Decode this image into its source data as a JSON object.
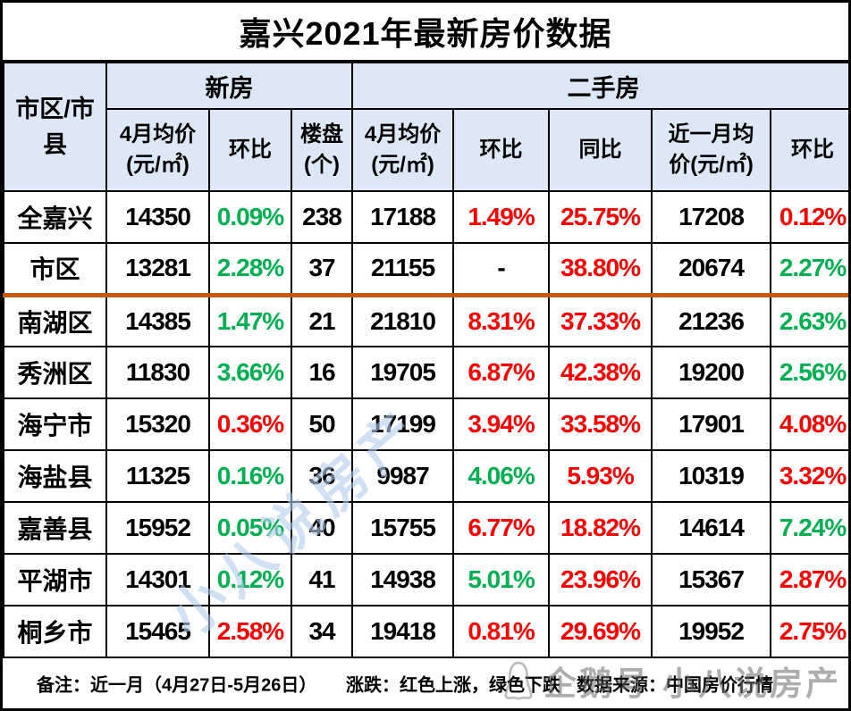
{
  "title": "嘉兴2021年最新房价数据",
  "header_display": {
    "corner": "市区/市\n县",
    "cols": [
      "4月均价\n(元/㎡)",
      "环比",
      "楼盘\n(个)",
      "4月均价\n(元/㎡)",
      "环比",
      "同比",
      "近一月均\n价(元/㎡)",
      "环比"
    ]
  },
  "chart_data": {
    "type": "table",
    "title": "嘉兴2021年最新房价数据",
    "corner_header": "市区/市县",
    "groups": [
      {
        "label": "新房",
        "columns": [
          "4月均价(元/㎡)",
          "环比",
          "楼盘(个)"
        ]
      },
      {
        "label": "二手房",
        "columns": [
          "4月均价(元/㎡)",
          "环比",
          "同比",
          "近一月均价(元/㎡)",
          "环比"
        ]
      }
    ],
    "color_semantics": {
      "red": "上涨",
      "green": "下跌"
    },
    "rows": [
      {
        "region": "全嘉兴",
        "divider_below": false,
        "cells": [
          {
            "t": "14350",
            "c": "black"
          },
          {
            "t": "0.09%",
            "c": "green"
          },
          {
            "t": "238",
            "c": "black"
          },
          {
            "t": "17188",
            "c": "black"
          },
          {
            "t": "1.49%",
            "c": "red"
          },
          {
            "t": "25.75%",
            "c": "red"
          },
          {
            "t": "17208",
            "c": "black"
          },
          {
            "t": "0.12%",
            "c": "red"
          }
        ]
      },
      {
        "region": "市区",
        "divider_below": true,
        "cells": [
          {
            "t": "13281",
            "c": "black"
          },
          {
            "t": "2.28%",
            "c": "green"
          },
          {
            "t": "37",
            "c": "black"
          },
          {
            "t": "21155",
            "c": "black"
          },
          {
            "t": "-",
            "c": "black"
          },
          {
            "t": "38.80%",
            "c": "red"
          },
          {
            "t": "20674",
            "c": "black"
          },
          {
            "t": "2.27%",
            "c": "green"
          }
        ]
      },
      {
        "region": "南湖区",
        "divider_below": false,
        "cells": [
          {
            "t": "14385",
            "c": "black"
          },
          {
            "t": "1.47%",
            "c": "green"
          },
          {
            "t": "21",
            "c": "black"
          },
          {
            "t": "21810",
            "c": "black"
          },
          {
            "t": "8.31%",
            "c": "red"
          },
          {
            "t": "37.33%",
            "c": "red"
          },
          {
            "t": "21236",
            "c": "black"
          },
          {
            "t": "2.63%",
            "c": "green"
          }
        ]
      },
      {
        "region": "秀洲区",
        "divider_below": false,
        "cells": [
          {
            "t": "11830",
            "c": "black"
          },
          {
            "t": "3.66%",
            "c": "green"
          },
          {
            "t": "16",
            "c": "black"
          },
          {
            "t": "19705",
            "c": "black"
          },
          {
            "t": "6.87%",
            "c": "red"
          },
          {
            "t": "42.38%",
            "c": "red"
          },
          {
            "t": "19200",
            "c": "black"
          },
          {
            "t": "2.56%",
            "c": "green"
          }
        ]
      },
      {
        "region": "海宁市",
        "divider_below": false,
        "cells": [
          {
            "t": "15320",
            "c": "black"
          },
          {
            "t": "0.36%",
            "c": "red"
          },
          {
            "t": "50",
            "c": "black"
          },
          {
            "t": "17199",
            "c": "black"
          },
          {
            "t": "3.94%",
            "c": "red"
          },
          {
            "t": "33.58%",
            "c": "red"
          },
          {
            "t": "17901",
            "c": "black"
          },
          {
            "t": "4.08%",
            "c": "red"
          }
        ]
      },
      {
        "region": "海盐县",
        "divider_below": false,
        "cells": [
          {
            "t": "11325",
            "c": "black"
          },
          {
            "t": "0.16%",
            "c": "green"
          },
          {
            "t": "36",
            "c": "black"
          },
          {
            "t": "9987",
            "c": "black"
          },
          {
            "t": "4.06%",
            "c": "green"
          },
          {
            "t": "5.93%",
            "c": "red"
          },
          {
            "t": "10319",
            "c": "black"
          },
          {
            "t": "3.32%",
            "c": "red"
          }
        ]
      },
      {
        "region": "嘉善县",
        "divider_below": false,
        "cells": [
          {
            "t": "15952",
            "c": "black"
          },
          {
            "t": "0.05%",
            "c": "green"
          },
          {
            "t": "40",
            "c": "black"
          },
          {
            "t": "15755",
            "c": "black"
          },
          {
            "t": "6.77%",
            "c": "red"
          },
          {
            "t": "18.82%",
            "c": "red"
          },
          {
            "t": "14614",
            "c": "black"
          },
          {
            "t": "7.24%",
            "c": "green"
          }
        ]
      },
      {
        "region": "平湖市",
        "divider_below": false,
        "cells": [
          {
            "t": "14301",
            "c": "black"
          },
          {
            "t": "0.12%",
            "c": "green"
          },
          {
            "t": "41",
            "c": "black"
          },
          {
            "t": "14938",
            "c": "black"
          },
          {
            "t": "5.01%",
            "c": "green"
          },
          {
            "t": "23.96%",
            "c": "red"
          },
          {
            "t": "15367",
            "c": "black"
          },
          {
            "t": "2.87%",
            "c": "red"
          }
        ]
      },
      {
        "region": "桐乡市",
        "divider_below": false,
        "cells": [
          {
            "t": "15465",
            "c": "black"
          },
          {
            "t": "2.58%",
            "c": "red"
          },
          {
            "t": "34",
            "c": "black"
          },
          {
            "t": "19418",
            "c": "black"
          },
          {
            "t": "0.81%",
            "c": "red"
          },
          {
            "t": "29.69%",
            "c": "red"
          },
          {
            "t": "19952",
            "c": "black"
          },
          {
            "t": "2.75%",
            "c": "red"
          }
        ]
      }
    ]
  },
  "footer": {
    "note": "备注：近一月（4月27日-5月26日）",
    "legend": "涨跌：红色上涨，绿色下跌",
    "source": "数据来源：中国房价行情"
  },
  "watermarks": {
    "center": "小八说房产",
    "bottom": "企鹅号 小八说房产"
  },
  "colors": {
    "rise_red": "#ff0000",
    "fall_green": "#00b050",
    "header_bg": "#dce8f5",
    "divider_orange": "#c55a11"
  }
}
